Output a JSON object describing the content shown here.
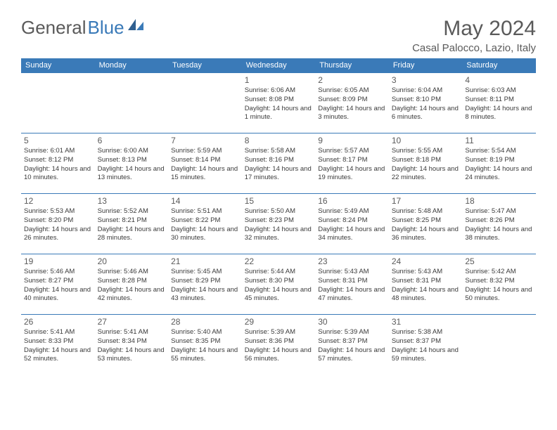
{
  "brand": {
    "part1": "General",
    "part2": "Blue"
  },
  "title": "May 2024",
  "location": "Casal Palocco, Lazio, Italy",
  "colors": {
    "header_bg": "#3a7ab8",
    "header_text": "#ffffff",
    "rule": "#3a7ab8",
    "text_muted": "#5a5a5a",
    "text_body": "#3a3a3a",
    "page_bg": "#ffffff"
  },
  "daysOfWeek": [
    "Sunday",
    "Monday",
    "Tuesday",
    "Wednesday",
    "Thursday",
    "Friday",
    "Saturday"
  ],
  "layout": {
    "columns": 7,
    "rows": 5,
    "first_day_column_index": 3,
    "days_in_month": 31
  },
  "days": {
    "1": {
      "sunrise": "6:06 AM",
      "sunset": "8:08 PM",
      "daylight": "14 hours and 1 minute."
    },
    "2": {
      "sunrise": "6:05 AM",
      "sunset": "8:09 PM",
      "daylight": "14 hours and 3 minutes."
    },
    "3": {
      "sunrise": "6:04 AM",
      "sunset": "8:10 PM",
      "daylight": "14 hours and 6 minutes."
    },
    "4": {
      "sunrise": "6:03 AM",
      "sunset": "8:11 PM",
      "daylight": "14 hours and 8 minutes."
    },
    "5": {
      "sunrise": "6:01 AM",
      "sunset": "8:12 PM",
      "daylight": "14 hours and 10 minutes."
    },
    "6": {
      "sunrise": "6:00 AM",
      "sunset": "8:13 PM",
      "daylight": "14 hours and 13 minutes."
    },
    "7": {
      "sunrise": "5:59 AM",
      "sunset": "8:14 PM",
      "daylight": "14 hours and 15 minutes."
    },
    "8": {
      "sunrise": "5:58 AM",
      "sunset": "8:16 PM",
      "daylight": "14 hours and 17 minutes."
    },
    "9": {
      "sunrise": "5:57 AM",
      "sunset": "8:17 PM",
      "daylight": "14 hours and 19 minutes."
    },
    "10": {
      "sunrise": "5:55 AM",
      "sunset": "8:18 PM",
      "daylight": "14 hours and 22 minutes."
    },
    "11": {
      "sunrise": "5:54 AM",
      "sunset": "8:19 PM",
      "daylight": "14 hours and 24 minutes."
    },
    "12": {
      "sunrise": "5:53 AM",
      "sunset": "8:20 PM",
      "daylight": "14 hours and 26 minutes."
    },
    "13": {
      "sunrise": "5:52 AM",
      "sunset": "8:21 PM",
      "daylight": "14 hours and 28 minutes."
    },
    "14": {
      "sunrise": "5:51 AM",
      "sunset": "8:22 PM",
      "daylight": "14 hours and 30 minutes."
    },
    "15": {
      "sunrise": "5:50 AM",
      "sunset": "8:23 PM",
      "daylight": "14 hours and 32 minutes."
    },
    "16": {
      "sunrise": "5:49 AM",
      "sunset": "8:24 PM",
      "daylight": "14 hours and 34 minutes."
    },
    "17": {
      "sunrise": "5:48 AM",
      "sunset": "8:25 PM",
      "daylight": "14 hours and 36 minutes."
    },
    "18": {
      "sunrise": "5:47 AM",
      "sunset": "8:26 PM",
      "daylight": "14 hours and 38 minutes."
    },
    "19": {
      "sunrise": "5:46 AM",
      "sunset": "8:27 PM",
      "daylight": "14 hours and 40 minutes."
    },
    "20": {
      "sunrise": "5:46 AM",
      "sunset": "8:28 PM",
      "daylight": "14 hours and 42 minutes."
    },
    "21": {
      "sunrise": "5:45 AM",
      "sunset": "8:29 PM",
      "daylight": "14 hours and 43 minutes."
    },
    "22": {
      "sunrise": "5:44 AM",
      "sunset": "8:30 PM",
      "daylight": "14 hours and 45 minutes."
    },
    "23": {
      "sunrise": "5:43 AM",
      "sunset": "8:31 PM",
      "daylight": "14 hours and 47 minutes."
    },
    "24": {
      "sunrise": "5:43 AM",
      "sunset": "8:31 PM",
      "daylight": "14 hours and 48 minutes."
    },
    "25": {
      "sunrise": "5:42 AM",
      "sunset": "8:32 PM",
      "daylight": "14 hours and 50 minutes."
    },
    "26": {
      "sunrise": "5:41 AM",
      "sunset": "8:33 PM",
      "daylight": "14 hours and 52 minutes."
    },
    "27": {
      "sunrise": "5:41 AM",
      "sunset": "8:34 PM",
      "daylight": "14 hours and 53 minutes."
    },
    "28": {
      "sunrise": "5:40 AM",
      "sunset": "8:35 PM",
      "daylight": "14 hours and 55 minutes."
    },
    "29": {
      "sunrise": "5:39 AM",
      "sunset": "8:36 PM",
      "daylight": "14 hours and 56 minutes."
    },
    "30": {
      "sunrise": "5:39 AM",
      "sunset": "8:37 PM",
      "daylight": "14 hours and 57 minutes."
    },
    "31": {
      "sunrise": "5:38 AM",
      "sunset": "8:37 PM",
      "daylight": "14 hours and 59 minutes."
    }
  },
  "labels": {
    "sunrise": "Sunrise:",
    "sunset": "Sunset:",
    "daylight": "Daylight:"
  }
}
